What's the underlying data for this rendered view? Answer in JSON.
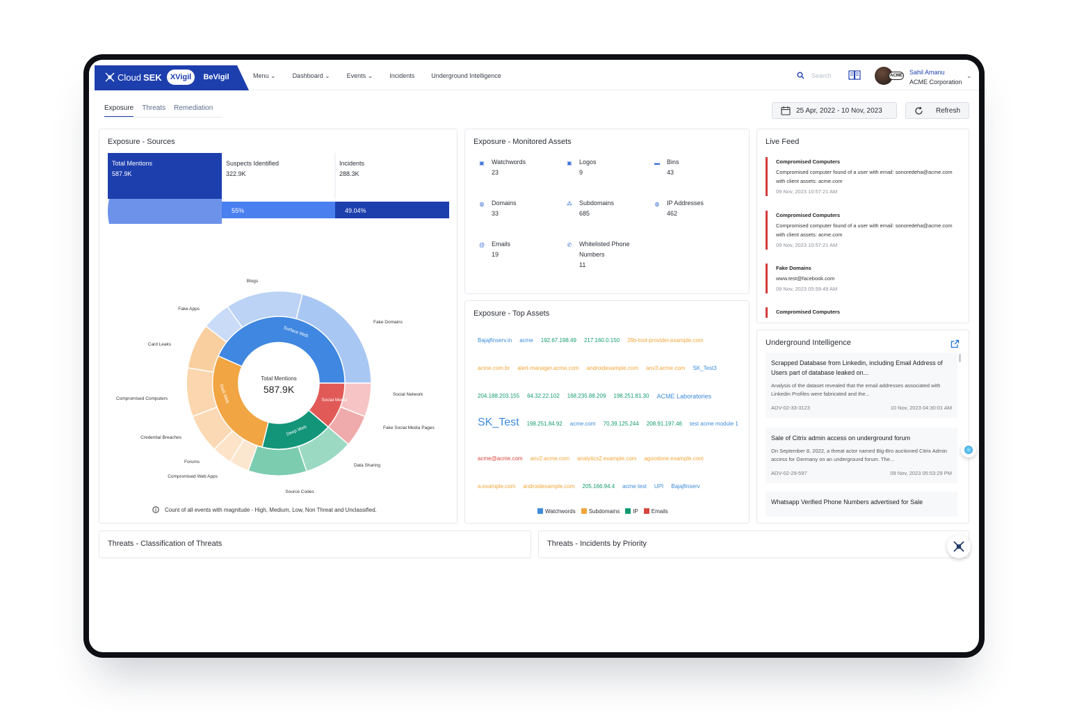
{
  "brand": {
    "name_light": "Cloud",
    "name_bold": "SEK",
    "product_active": "XVigil",
    "product_other": "BeVigil"
  },
  "nav": {
    "items": [
      "Menu ⌄",
      "Dashboard ⌄",
      "Events ⌄",
      "Incidents",
      "Underground Intelligence"
    ],
    "search_placeholder": "Search"
  },
  "user": {
    "name": "Sahil Amanu",
    "org": "ACME Corporation",
    "badge": "ACME"
  },
  "tabs": [
    "Exposure",
    "Threats",
    "Remediation"
  ],
  "date_range": "25 Apr, 2022 - 10 Nov, 2023",
  "refresh_label": "Refresh",
  "sources": {
    "title": "Exposure - Sources",
    "total": {
      "label": "Total Mentions",
      "value": "587.9K"
    },
    "suspects": {
      "label": "Suspects Identified",
      "value": "322.9K",
      "pct": "55%"
    },
    "incidents": {
      "label": "Incidents",
      "value": "288.3K",
      "pct": "49.04%"
    },
    "center_label": "Total Mentions",
    "center_value": "587.9K",
    "footnote": "Count of all events with magnitude - High, Medium, Low, Non Threat and Unclassified.",
    "inner": [
      "Surface Web",
      "Dark Web",
      "Deep Web",
      "Social Media"
    ],
    "outer": [
      "Blogs",
      "Fake Domains",
      "Social Network",
      "Fake Social Media Pages",
      "Data Sharing",
      "Source Codes",
      "Compromised Web Apps",
      "Forums",
      "Credential Breaches",
      "Compromised Computers",
      "Card Leaks",
      "Fake Apps"
    ]
  },
  "monitored": {
    "title": "Exposure - Monitored Assets",
    "items": [
      {
        "label": "Watchwords",
        "value": "23"
      },
      {
        "label": "Logos",
        "value": "9"
      },
      {
        "label": "Bins",
        "value": "43"
      },
      {
        "label": "Domains",
        "value": "33"
      },
      {
        "label": "Subdomains",
        "value": "685"
      },
      {
        "label": "IP Addresses",
        "value": "462"
      },
      {
        "label": "Emails",
        "value": "19"
      },
      {
        "label": "Whitelisted Phone Numbers",
        "value": "11"
      }
    ]
  },
  "top_assets": {
    "title": "Exposure - Top Assets",
    "words": [
      "Bajajfinserv.in",
      "acme",
      "192.67.198.49",
      "217.160.0.150",
      "2fib-tool-provider.example.com",
      "acme.com.br",
      "alert-manager.acme.com",
      "androidexample.com",
      "anv3.acme.com",
      "SK_Test3",
      "204.188.203.155",
      "64.32.22.102",
      "168.235.88.209",
      "198.251.81.30",
      "ACME Laboratories",
      "SK_Test",
      "198.251.84.92",
      "acme.com",
      "70.39.125.244",
      "208.91.197.46",
      "test acme module 1",
      "acme@acme.com",
      "anv2.acme.com",
      "analytics2.example.com",
      "agoodone.example.com",
      "a.example.com",
      "androidexample.com",
      "205.166.94.4",
      "acme test",
      "UPI",
      "Bajajfinserv"
    ],
    "legend": [
      "Watchwords",
      "Subdomains",
      "IP",
      "Emails"
    ],
    "colors": {
      "watchwords": "#3d8bd9",
      "subdomains": "#f0a63a",
      "ip": "#129a6f",
      "emails": "#d9453d"
    }
  },
  "feed": {
    "title": "Live Feed",
    "items": [
      {
        "title": "Compromised Computers",
        "desc": "Compromised computer found of a user with email: sonoredeha@acme.com with client assets: acme.com",
        "time": "09 Nov, 2023 10:57:21 AM"
      },
      {
        "title": "Compromised Computers",
        "desc": "Compromised computer found of a user with email: sonoredeha@acme.com with client assets: acme.com",
        "time": "09 Nov, 2023 10:57:21 AM"
      },
      {
        "title": "Fake Domains",
        "desc": "www.test@facebook.com",
        "time": "09 Nov, 2023 05:59:49 AM"
      },
      {
        "title": "Compromised Computers",
        "desc": "",
        "time": ""
      }
    ]
  },
  "underground": {
    "title": "Underground Intelligence",
    "items": [
      {
        "title": "Scrapped Database from Linkedin, including Email Address of Users part of database leaked on...",
        "desc": "Analysis of the dataset revealed that the email addresses associated with Linkedin Profiles were fabricated and the...",
        "id": "ADV-02-33-3123",
        "time": "10 Nov, 2023 04:30:01 AM"
      },
      {
        "title": "Sale of Citrix admin access on underground forum",
        "desc": "On September 8, 2022, a threat actor named Big-Bro auctioned Citrix Admin access for Germany on an underground forum. The...",
        "id": "ADV-02-29-597",
        "time": "09 Nov, 2023 05:53:29 PM"
      },
      {
        "title": "Whatsapp Verified Phone Numbers advertised for Sale",
        "desc": "",
        "id": "",
        "time": ""
      }
    ]
  },
  "threats": {
    "classification_title": "Threats - Classification of Threats",
    "priority_title": "Threats - Incidents by Priority"
  }
}
